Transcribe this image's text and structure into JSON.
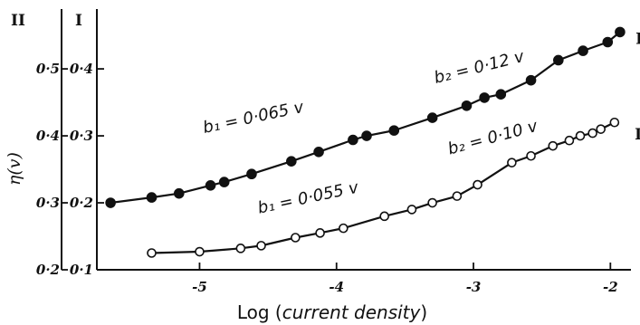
{
  "chart_data": {
    "type": "line",
    "xlabel_prefix": "Log (",
    "xlabel_italic": "current density",
    "xlabel_suffix": ")",
    "ylabel": "η(v)",
    "xlim": [
      -5.75,
      -1.85
    ],
    "x_ticks": [
      -5,
      -4,
      -3,
      -2
    ],
    "x_tick_labels": [
      "-5",
      "-4",
      "-3",
      "-2"
    ],
    "y_axis_I": {
      "name": "I",
      "ticks": [
        0.1,
        0.2,
        0.3,
        0.4
      ],
      "tick_labels": [
        "0·1",
        "0·2",
        "0·3",
        "0·4"
      ],
      "ylim": [
        0.1,
        0.465
      ]
    },
    "y_axis_II": {
      "name": "II",
      "ticks": [
        0.2,
        0.3,
        0.4,
        0.5
      ],
      "tick_labels": [
        "0·2",
        "0·3",
        "0·4",
        "0·5"
      ]
    },
    "series": [
      {
        "name": "I",
        "marker": "filled-circle",
        "x": [
          -5.65,
          -5.35,
          -5.15,
          -4.92,
          -4.82,
          -4.62,
          -4.33,
          -4.13,
          -3.88,
          -3.78,
          -3.58,
          -3.3,
          -3.05,
          -2.92,
          -2.8,
          -2.58,
          -2.38,
          -2.2,
          -2.02,
          -1.93
        ],
        "y": [
          0.2,
          0.208,
          0.214,
          0.226,
          0.231,
          0.243,
          0.262,
          0.276,
          0.294,
          0.3,
          0.308,
          0.327,
          0.345,
          0.357,
          0.362,
          0.383,
          0.413,
          0.427,
          0.44,
          0.455
        ]
      },
      {
        "name": "II",
        "marker": "open-circle",
        "x": [
          -5.35,
          -5.0,
          -4.7,
          -4.55,
          -4.3,
          -4.12,
          -3.95,
          -3.65,
          -3.45,
          -3.3,
          -3.12,
          -2.97,
          -2.72,
          -2.58,
          -2.42,
          -2.3,
          -2.22,
          -2.13,
          -2.07,
          -1.97
        ],
        "y": [
          0.125,
          0.127,
          0.132,
          0.136,
          0.148,
          0.155,
          0.162,
          0.18,
          0.19,
          0.2,
          0.21,
          0.227,
          0.26,
          0.27,
          0.285,
          0.293,
          0.3,
          0.304,
          0.31,
          0.32
        ]
      }
    ],
    "annotations": [
      {
        "text": "b₁ = 0·065 v",
        "x": -4.6,
        "y": 0.32,
        "rotate": -12
      },
      {
        "text": "b₂ = 0·12 v",
        "x": -2.95,
        "y": 0.395,
        "rotate": -14
      },
      {
        "text": "b₁ = 0·055 v",
        "x": -4.2,
        "y": 0.2,
        "rotate": -12
      },
      {
        "text": "b₂ = 0·10 v",
        "x": -2.85,
        "y": 0.29,
        "rotate": -15
      }
    ],
    "curve_labels": [
      {
        "text": "I",
        "x": -1.79,
        "y": 0.437
      },
      {
        "text": "II",
        "x": -1.77,
        "y": 0.295
      }
    ]
  }
}
